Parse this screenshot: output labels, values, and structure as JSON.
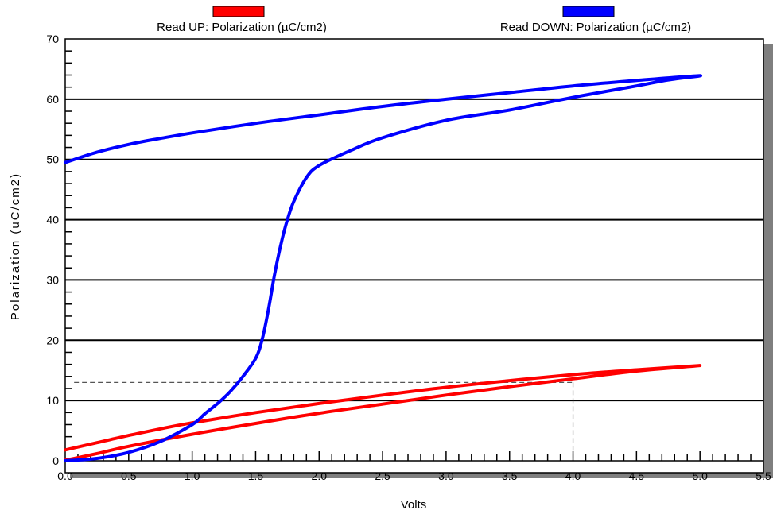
{
  "chart_data": {
    "type": "line",
    "xlabel": "Volts",
    "ylabel": "Polarization (uC/cm2)",
    "xlim": [
      0,
      5.5
    ],
    "ylim": [
      0,
      70
    ],
    "x_ticks": [
      "0.0",
      "0.5",
      "1.0",
      "1.5",
      "2.0",
      "2.5",
      "3.0",
      "3.5",
      "4.0",
      "4.5",
      "5.0",
      "5.5"
    ],
    "y_ticks": [
      "0",
      "10",
      "20",
      "30",
      "40",
      "50",
      "60",
      "70"
    ],
    "grid": "horizontal major lines",
    "legend_position": "top",
    "series": [
      {
        "name": "Read UP: Polarization (µC/cm2)",
        "color": "#ff0000",
        "points": [
          [
            0.0,
            1.8
          ],
          [
            0.25,
            3.0
          ],
          [
            0.5,
            4.2
          ],
          [
            0.75,
            5.3
          ],
          [
            1.0,
            6.3
          ],
          [
            1.5,
            8.0
          ],
          [
            2.0,
            9.5
          ],
          [
            2.5,
            10.9
          ],
          [
            3.0,
            12.2
          ],
          [
            3.5,
            13.3
          ],
          [
            4.0,
            14.3
          ],
          [
            4.5,
            15.1
          ],
          [
            5.0,
            15.8
          ],
          [
            4.5,
            14.9
          ],
          [
            4.0,
            13.6
          ],
          [
            3.5,
            12.3
          ],
          [
            3.0,
            10.9
          ],
          [
            2.5,
            9.4
          ],
          [
            2.0,
            7.9
          ],
          [
            1.5,
            6.2
          ],
          [
            1.0,
            4.4
          ],
          [
            0.5,
            2.4
          ],
          [
            0.25,
            1.2
          ],
          [
            0.0,
            0.1
          ]
        ]
      },
      {
        "name": "Read DOWN: Polarization (µC/cm2)",
        "color": "#0000ff",
        "points": [
          [
            0.0,
            49.5
          ],
          [
            0.25,
            51.2
          ],
          [
            0.5,
            52.5
          ],
          [
            0.75,
            53.5
          ],
          [
            1.0,
            54.4
          ],
          [
            1.5,
            56.0
          ],
          [
            2.0,
            57.4
          ],
          [
            2.5,
            58.8
          ],
          [
            3.0,
            60.0
          ],
          [
            3.5,
            61.1
          ],
          [
            4.0,
            62.2
          ],
          [
            4.5,
            63.1
          ],
          [
            5.0,
            63.9
          ],
          [
            4.75,
            63.2
          ],
          [
            4.5,
            62.2
          ],
          [
            4.0,
            60.3
          ],
          [
            3.5,
            58.2
          ],
          [
            3.0,
            56.5
          ],
          [
            2.5,
            53.6
          ],
          [
            2.25,
            51.5
          ],
          [
            2.0,
            49.0
          ],
          [
            1.9,
            47.0
          ],
          [
            1.8,
            43.0
          ],
          [
            1.75,
            40.0
          ],
          [
            1.7,
            36.0
          ],
          [
            1.65,
            31.0
          ],
          [
            1.6,
            25.0
          ],
          [
            1.55,
            20.0
          ],
          [
            1.5,
            17.0
          ],
          [
            1.4,
            14.0
          ],
          [
            1.3,
            11.5
          ],
          [
            1.2,
            9.5
          ],
          [
            1.1,
            7.8
          ],
          [
            1.0,
            6.0
          ],
          [
            0.75,
            3.2
          ],
          [
            0.5,
            1.4
          ],
          [
            0.25,
            0.4
          ],
          [
            0.0,
            0.0
          ]
        ]
      }
    ],
    "annotation": {
      "x": 4.0,
      "y": 13.0,
      "style": "dashed"
    }
  }
}
